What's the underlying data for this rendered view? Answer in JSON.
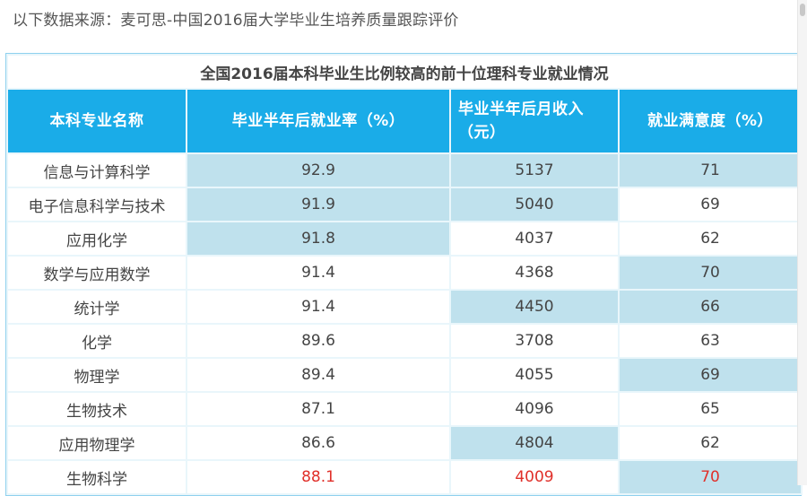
{
  "source_note": "以下数据来源：麦可思-中国2016届大学毕业生培养质量跟踪评价",
  "table": {
    "caption": "全国2016届本科毕业生比例较高的前十位理科专业就业情况",
    "headers": [
      "本科专业名称",
      "毕业半年后就业率（%）",
      "毕业半年后月收入（元）",
      "就业满意度（%）"
    ],
    "rows": [
      {
        "major": "信息与计算科学",
        "employment": "92.9",
        "income": "5137",
        "satisfaction": "71"
      },
      {
        "major": "电子信息科学与技术",
        "employment": "91.9",
        "income": "5040",
        "satisfaction": "69"
      },
      {
        "major": "应用化学",
        "employment": "91.8",
        "income": "4037",
        "satisfaction": "62"
      },
      {
        "major": "数学与应用数学",
        "employment": "91.4",
        "income": "4368",
        "satisfaction": "70"
      },
      {
        "major": "统计学",
        "employment": "91.4",
        "income": "4450",
        "satisfaction": "66"
      },
      {
        "major": "化学",
        "employment": "89.6",
        "income": "3708",
        "satisfaction": "63"
      },
      {
        "major": "物理学",
        "employment": "89.4",
        "income": "4055",
        "satisfaction": "69"
      },
      {
        "major": "生物技术",
        "employment": "87.1",
        "income": "4096",
        "satisfaction": "65"
      },
      {
        "major": "应用物理学",
        "employment": "86.6",
        "income": "4804",
        "satisfaction": "62"
      },
      {
        "major": "生物科学",
        "employment": "88.1",
        "income": "4009",
        "satisfaction": "70"
      }
    ]
  },
  "colors": {
    "header_bg": "#1aace8",
    "highlight_bg": "#bfe1ed",
    "red_text": "#e0302a"
  }
}
